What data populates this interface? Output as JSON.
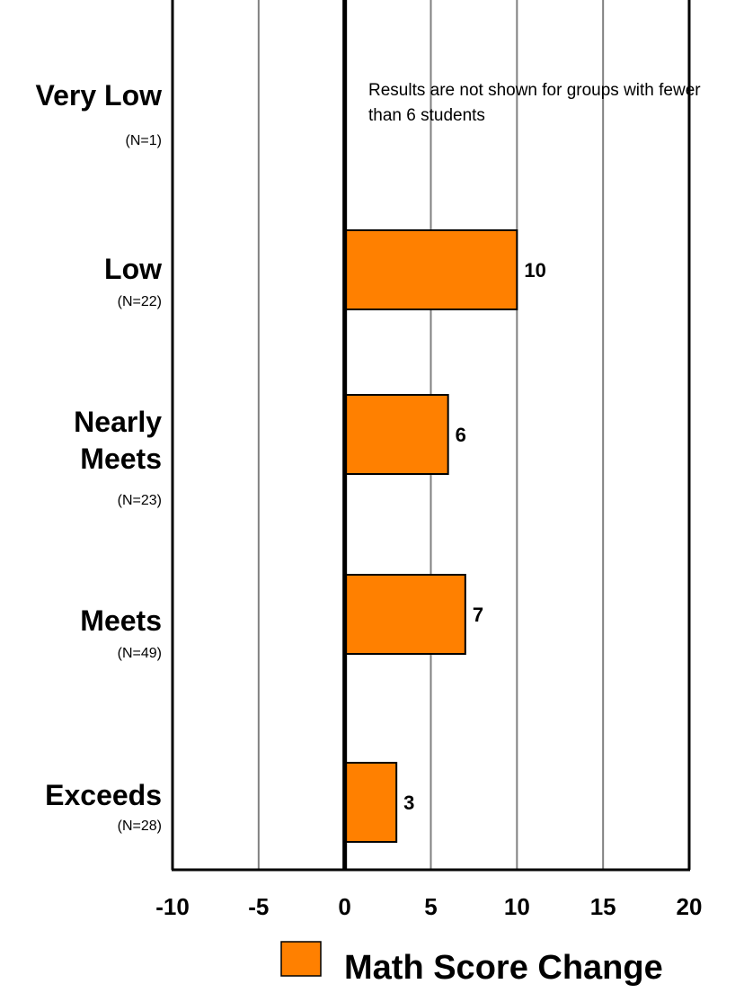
{
  "chart_data": {
    "type": "bar",
    "orientation": "horizontal",
    "categories": [
      "Very Low",
      "Low",
      "Nearly Meets",
      "Meets",
      "Exceeds"
    ],
    "category_counts": [
      "(N=1)",
      "(N=22)",
      "(N=23)",
      "(N=49)",
      "(N=28)"
    ],
    "series": [
      {
        "name": "Math Score Change",
        "values": [
          null,
          10,
          6,
          7,
          3
        ],
        "data_labels": [
          "",
          "10",
          "6",
          "7",
          "3"
        ]
      }
    ],
    "xlim": [
      -10,
      20
    ],
    "xticks": [
      -10,
      -5,
      0,
      5,
      10,
      15,
      20
    ],
    "tick_labels": [
      "-10",
      "-5",
      "0",
      "5",
      "10",
      "15",
      "20"
    ],
    "grid": true,
    "annotation": "Results are not shown for groups with fewer than 6 students",
    "legend_position": "bottom",
    "colors": {
      "bar": "#ff8000",
      "bar_stroke": "#000000",
      "grid": "#808080",
      "zero_line": "#000000"
    }
  }
}
